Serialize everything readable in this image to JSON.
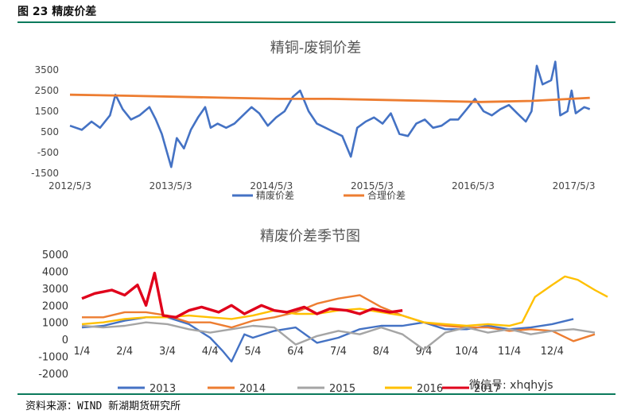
{
  "figure": {
    "title": "图 23 精废价差",
    "source": "资料来源：WIND 新湖期货研究所",
    "watermark": "微信号: xhqhyjs"
  },
  "chart_data": [
    {
      "type": "line",
      "title": "精铜-废铜价差",
      "ylim": [
        -1500,
        4000
      ],
      "y_ticks": [
        "3500",
        "2500",
        "1500",
        "500",
        "-500",
        "-1500"
      ],
      "x_ticks": [
        "2012/5/3",
        "2013/5/3",
        "2014/5/3",
        "2015/5/3",
        "2016/5/3",
        "2017/5/3"
      ],
      "x_range": [
        "2012/5/3",
        "2017/7/1"
      ],
      "legend_position": "bottom",
      "series": [
        {
          "name": "精废价差",
          "color": "#4472c4",
          "points": [
            [
              "2012/5/3",
              800
            ],
            [
              "2012/6/15",
              600
            ],
            [
              "2012/7/20",
              1000
            ],
            [
              "2012/8/20",
              700
            ],
            [
              "2012/9/25",
              1300
            ],
            [
              "2012/10/15",
              2300
            ],
            [
              "2012/11/10",
              1600
            ],
            [
              "2012/12/10",
              1100
            ],
            [
              "2013/1/10",
              1300
            ],
            [
              "2013/2/15",
              1700
            ],
            [
              "2013/3/10",
              1100
            ],
            [
              "2013/4/1",
              400
            ],
            [
              "2013/4/20",
              -500
            ],
            [
              "2013/5/5",
              -1200
            ],
            [
              "2013/5/25",
              200
            ],
            [
              "2013/6/20",
              -300
            ],
            [
              "2013/7/15",
              600
            ],
            [
              "2013/8/10",
              1200
            ],
            [
              "2013/9/5",
              1700
            ],
            [
              "2013/9/25",
              700
            ],
            [
              "2013/10/20",
              900
            ],
            [
              "2013/11/20",
              700
            ],
            [
              "2013/12/20",
              900
            ],
            [
              "2014/1/20",
              1300
            ],
            [
              "2014/2/20",
              1700
            ],
            [
              "2014/3/20",
              1400
            ],
            [
              "2014/4/20",
              800
            ],
            [
              "2014/5/20",
              1200
            ],
            [
              "2014/6/20",
              1500
            ],
            [
              "2014/7/20",
              2200
            ],
            [
              "2014/8/15",
              2500
            ],
            [
              "2014/9/15",
              1500
            ],
            [
              "2014/10/15",
              900
            ],
            [
              "2014/11/15",
              700
            ],
            [
              "2014/12/15",
              500
            ],
            [
              "2015/1/15",
              300
            ],
            [
              "2015/2/15",
              -700
            ],
            [
              "2015/3/10",
              700
            ],
            [
              "2015/4/10",
              1000
            ],
            [
              "2015/5/10",
              1200
            ],
            [
              "2015/6/10",
              900
            ],
            [
              "2015/7/10",
              1400
            ],
            [
              "2015/8/10",
              400
            ],
            [
              "2015/9/10",
              300
            ],
            [
              "2015/10/10",
              900
            ],
            [
              "2015/11/10",
              1100
            ],
            [
              "2015/12/10",
              700
            ],
            [
              "2016/1/10",
              800
            ],
            [
              "2016/2/10",
              1100
            ],
            [
              "2016/3/10",
              1100
            ],
            [
              "2016/4/10",
              1600
            ],
            [
              "2016/5/10",
              2100
            ],
            [
              "2016/6/10",
              1500
            ],
            [
              "2016/7/10",
              1300
            ],
            [
              "2016/8/10",
              1600
            ],
            [
              "2016/9/10",
              1800
            ],
            [
              "2016/10/10",
              1400
            ],
            [
              "2016/11/10",
              1000
            ],
            [
              "2016/12/1",
              1500
            ],
            [
              "2016/12/20",
              3700
            ],
            [
              "2017/1/10",
              2800
            ],
            [
              "2017/2/10",
              3000
            ],
            [
              "2017/2/25",
              3900
            ],
            [
              "2017/3/15",
              1300
            ],
            [
              "2017/4/10",
              1500
            ],
            [
              "2017/4/25",
              2500
            ],
            [
              "2017/5/10",
              1400
            ],
            [
              "2017/6/10",
              1700
            ],
            [
              "2017/6/30",
              1600
            ]
          ]
        },
        {
          "name": "合理价差",
          "color": "#ed7d31",
          "points": [
            [
              "2012/5/3",
              2300
            ],
            [
              "2012/12/1",
              2250
            ],
            [
              "2013/6/1",
              2200
            ],
            [
              "2013/12/1",
              2150
            ],
            [
              "2014/6/1",
              2100
            ],
            [
              "2014/12/1",
              2100
            ],
            [
              "2015/6/1",
              2050
            ],
            [
              "2015/12/1",
              2000
            ],
            [
              "2016/6/1",
              1950
            ],
            [
              "2016/12/1",
              2000
            ],
            [
              "2017/6/30",
              2150
            ]
          ]
        }
      ]
    },
    {
      "type": "line",
      "title": "精废价差季节图",
      "ylim": [
        -2000,
        5000
      ],
      "y_ticks": [
        "5000",
        "4000",
        "3000",
        "2000",
        "1000",
        "0",
        "-1000",
        "-2000"
      ],
      "x_ticks": [
        "1/4",
        "2/4",
        "3/4",
        "4/4",
        "5/4",
        "6/4",
        "7/4",
        "8/4",
        "9/4",
        "10/4",
        "11/4",
        "12/4"
      ],
      "legend_position": "bottom",
      "series": [
        {
          "name": "2013",
          "color": "#4472c4",
          "points": [
            [
              0,
              700
            ],
            [
              0.5,
              800
            ],
            [
              1,
              1100
            ],
            [
              1.5,
              1300
            ],
            [
              2,
              1300
            ],
            [
              2.5,
              900
            ],
            [
              3,
              100
            ],
            [
              3.3,
              -700
            ],
            [
              3.5,
              -1300
            ],
            [
              3.8,
              300
            ],
            [
              4,
              100
            ],
            [
              4.5,
              500
            ],
            [
              5,
              700
            ],
            [
              5.5,
              -200
            ],
            [
              6,
              100
            ],
            [
              6.5,
              600
            ],
            [
              7,
              800
            ],
            [
              7.5,
              800
            ],
            [
              8,
              1000
            ],
            [
              8.5,
              600
            ],
            [
              9,
              600
            ],
            [
              9.5,
              800
            ],
            [
              10,
              600
            ],
            [
              10.5,
              700
            ],
            [
              11,
              900
            ],
            [
              11.5,
              1200
            ]
          ]
        },
        {
          "name": "2014",
          "color": "#ed7d31",
          "points": [
            [
              0,
              1300
            ],
            [
              0.5,
              1300
            ],
            [
              1,
              1600
            ],
            [
              1.5,
              1600
            ],
            [
              2,
              1400
            ],
            [
              2.5,
              1000
            ],
            [
              3,
              1000
            ],
            [
              3.5,
              700
            ],
            [
              4,
              1100
            ],
            [
              4.5,
              1300
            ],
            [
              5,
              1600
            ],
            [
              5.5,
              2100
            ],
            [
              6,
              2400
            ],
            [
              6.5,
              2600
            ],
            [
              7,
              1900
            ],
            [
              7.5,
              1400
            ],
            [
              8,
              1000
            ],
            [
              8.5,
              800
            ],
            [
              9,
              700
            ],
            [
              9.5,
              700
            ],
            [
              10,
              500
            ],
            [
              10.5,
              600
            ],
            [
              11,
              500
            ],
            [
              11.5,
              -100
            ],
            [
              12,
              300
            ]
          ]
        },
        {
          "name": "2015",
          "color": "#a5a5a5",
          "points": [
            [
              0,
              800
            ],
            [
              0.5,
              700
            ],
            [
              1,
              800
            ],
            [
              1.5,
              1000
            ],
            [
              2,
              900
            ],
            [
              2.5,
              600
            ],
            [
              3,
              400
            ],
            [
              3.5,
              600
            ],
            [
              4,
              800
            ],
            [
              4.5,
              700
            ],
            [
              5,
              -300
            ],
            [
              5.5,
              200
            ],
            [
              6,
              500
            ],
            [
              6.5,
              300
            ],
            [
              7,
              700
            ],
            [
              7.5,
              300
            ],
            [
              8,
              -600
            ],
            [
              8.5,
              400
            ],
            [
              9,
              700
            ],
            [
              9.5,
              400
            ],
            [
              10,
              600
            ],
            [
              10.5,
              300
            ],
            [
              11,
              500
            ],
            [
              11.5,
              600
            ],
            [
              12,
              400
            ]
          ]
        },
        {
          "name": "2016",
          "color": "#ffc000",
          "points": [
            [
              0,
              900
            ],
            [
              0.5,
              1000
            ],
            [
              1,
              1200
            ],
            [
              1.5,
              1300
            ],
            [
              2,
              1300
            ],
            [
              2.5,
              1400
            ],
            [
              3,
              1300
            ],
            [
              3.5,
              1200
            ],
            [
              4,
              1400
            ],
            [
              4.5,
              1700
            ],
            [
              5,
              1500
            ],
            [
              5.5,
              1500
            ],
            [
              6,
              1700
            ],
            [
              6.5,
              1800
            ],
            [
              7,
              1600
            ],
            [
              7.5,
              1400
            ],
            [
              8,
              1000
            ],
            [
              8.5,
              900
            ],
            [
              9,
              800
            ],
            [
              9.5,
              900
            ],
            [
              10,
              800
            ],
            [
              10.3,
              1000
            ],
            [
              10.6,
              2500
            ],
            [
              11,
              3200
            ],
            [
              11.3,
              3700
            ],
            [
              11.6,
              3500
            ],
            [
              12,
              2900
            ],
            [
              12.3,
              2500
            ]
          ]
        },
        {
          "name": "2017",
          "color": "#e0001b",
          "points": [
            [
              0,
              2400
            ],
            [
              0.3,
              2700
            ],
            [
              0.7,
              2900
            ],
            [
              1,
              2600
            ],
            [
              1.3,
              3200
            ],
            [
              1.5,
              2000
            ],
            [
              1.7,
              3900
            ],
            [
              1.9,
              1400
            ],
            [
              2.2,
              1300
            ],
            [
              2.5,
              1700
            ],
            [
              2.8,
              1900
            ],
            [
              3.2,
              1600
            ],
            [
              3.5,
              2000
            ],
            [
              3.8,
              1500
            ],
            [
              4.2,
              2000
            ],
            [
              4.5,
              1700
            ],
            [
              4.8,
              1600
            ],
            [
              5.2,
              1900
            ],
            [
              5.5,
              1500
            ],
            [
              5.8,
              1800
            ],
            [
              6.2,
              1700
            ],
            [
              6.5,
              1500
            ],
            [
              6.8,
              1800
            ],
            [
              7.2,
              1600
            ],
            [
              7.5,
              1700
            ]
          ]
        }
      ]
    }
  ]
}
